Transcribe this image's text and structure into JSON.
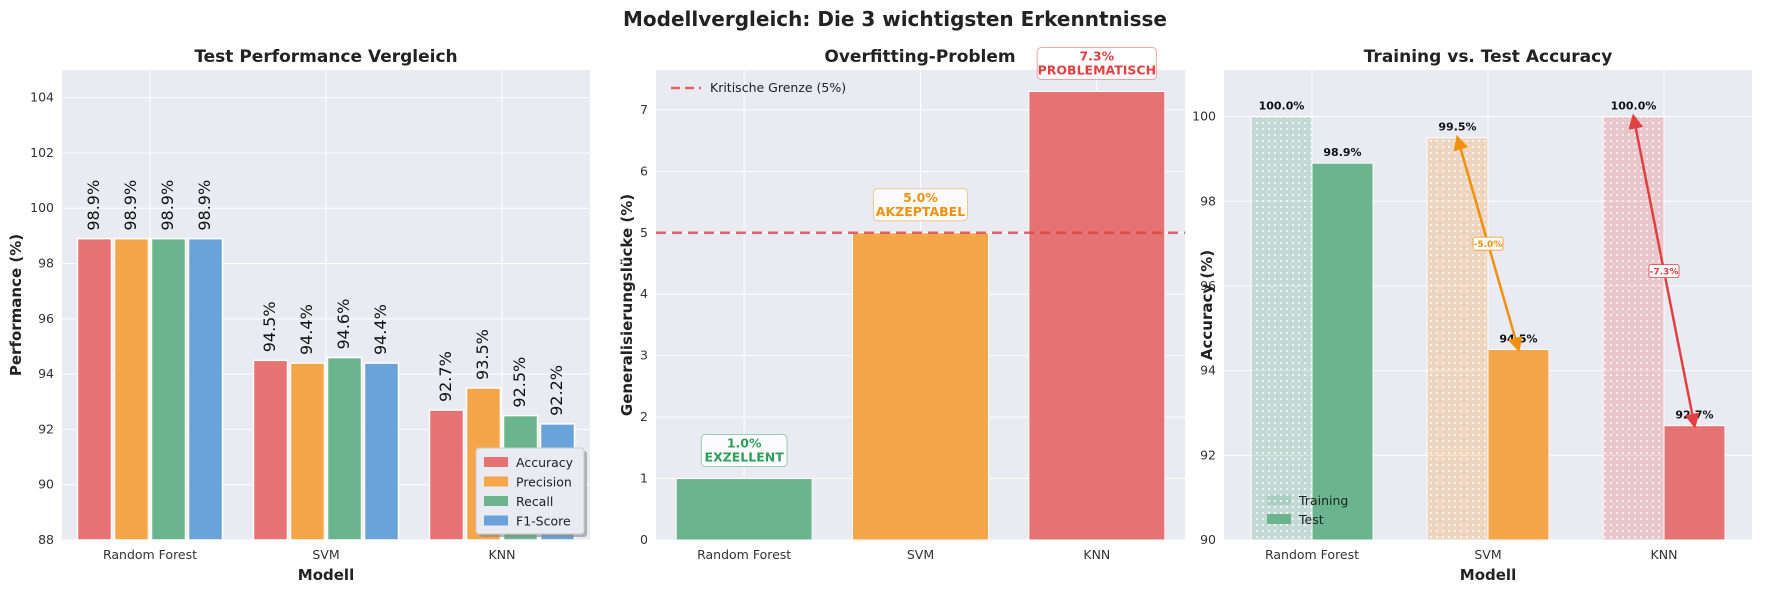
{
  "figure_title": "Modellvergleich: Die 3 wichtigsten Erkenntnisse",
  "colors": {
    "accuracy": "#e57373",
    "precision": "#f6a64a",
    "recall": "#6ab58e",
    "f1": "#6aa3d9",
    "good": "#6ab58e",
    "ok": "#f6a64a",
    "bad": "#e57373",
    "good_text": "#2e9e5b",
    "ok_text": "#f0900d",
    "bad_text": "#e04040",
    "plot_bg": "#eaeaf2"
  },
  "chart_data": [
    {
      "type": "bar",
      "title": "Test Performance Vergleich",
      "xlabel": "Modell",
      "ylabel": "Performance (%)",
      "ylim": [
        88,
        105
      ],
      "yticks": [
        88,
        90,
        92,
        94,
        96,
        98,
        100,
        102,
        104
      ],
      "categories": [
        "Random Forest",
        "SVM",
        "KNN"
      ],
      "series": [
        {
          "name": "Accuracy",
          "color_key": "accuracy",
          "values": [
            98.9,
            94.5,
            92.7
          ],
          "labels": [
            "98.9%",
            "94.5%",
            "92.7%"
          ]
        },
        {
          "name": "Precision",
          "color_key": "precision",
          "values": [
            98.9,
            94.4,
            93.5
          ],
          "labels": [
            "98.9%",
            "94.4%",
            "93.5%"
          ]
        },
        {
          "name": "Recall",
          "color_key": "recall",
          "values": [
            98.9,
            94.6,
            92.5
          ],
          "labels": [
            "98.9%",
            "94.6%",
            "92.5%"
          ]
        },
        {
          "name": "F1-Score",
          "color_key": "f1",
          "values": [
            98.9,
            94.4,
            92.2
          ],
          "labels": [
            "98.9%",
            "94.4%",
            "92.2%"
          ]
        }
      ],
      "legend": "lower-right",
      "grid": true
    },
    {
      "type": "bar",
      "title": "Overfitting-Problem",
      "xlabel": "",
      "ylabel": "Generalisierungslücke (%)",
      "ylim": [
        0,
        7.65
      ],
      "yticks": [
        0,
        1,
        2,
        3,
        4,
        5,
        6,
        7
      ],
      "categories": [
        "Random Forest",
        "SVM",
        "KNN"
      ],
      "values": [
        1.0,
        5.0,
        7.3
      ],
      "bar_color_keys": [
        "good",
        "ok",
        "bad"
      ],
      "annotations": [
        {
          "value": "1.0%",
          "status": "EXZELLENT",
          "color_key": "good_text"
        },
        {
          "value": "5.0%",
          "status": "AKZEPTABEL",
          "color_key": "ok_text"
        },
        {
          "value": "7.3%",
          "status": "PROBLEMATISCH",
          "color_key": "bad_text"
        }
      ],
      "threshold": {
        "value": 5,
        "label": "Kritische Grenze (5%)"
      },
      "legend": "top-left",
      "grid": true
    },
    {
      "type": "bar",
      "title": "Training vs. Test Accuracy",
      "xlabel": "Modell",
      "ylabel": "Accuracy (%)",
      "ylim": [
        90,
        101.1
      ],
      "yticks": [
        90,
        92,
        94,
        96,
        98,
        100
      ],
      "categories": [
        "Random Forest",
        "SVM",
        "KNN"
      ],
      "series": [
        {
          "name": "Training",
          "values": [
            100.0,
            99.5,
            100.0
          ],
          "labels": [
            "100.0%",
            "99.5%",
            "100.0%"
          ],
          "style": "hatched-light"
        },
        {
          "name": "Test",
          "values": [
            98.9,
            94.5,
            92.7
          ],
          "labels": [
            "98.9%",
            "94.5%",
            "92.7%"
          ]
        }
      ],
      "bar_color_keys": [
        "good",
        "ok",
        "bad"
      ],
      "arrows": [
        {
          "category": "SVM",
          "label": "-5.0%",
          "color_key": "ok_text"
        },
        {
          "category": "KNN",
          "label": "-7.3%",
          "color_key": "bad_text"
        }
      ],
      "legend": "lower-left",
      "grid": true
    }
  ]
}
